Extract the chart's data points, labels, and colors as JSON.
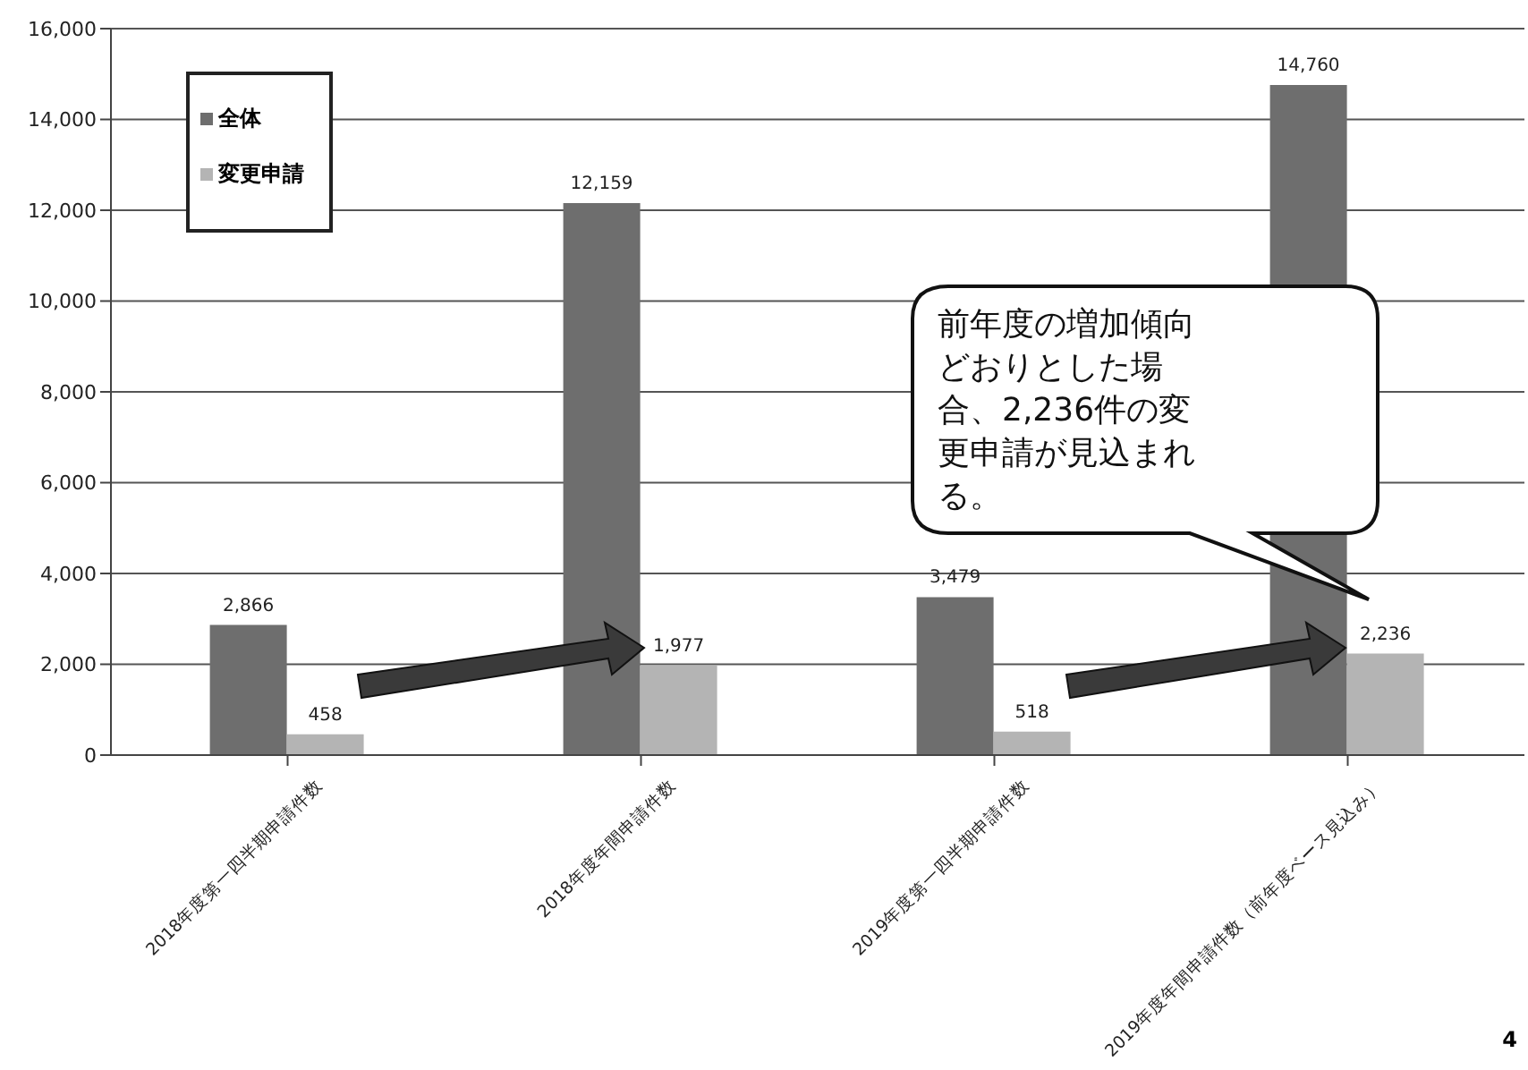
{
  "chart_data": {
    "type": "bar",
    "categories": [
      "2018年度第一四半期申請件数",
      "2018年度年間申請件数",
      "2019年度第一四半期申請件数",
      "2019年度年間申請件数（前年度ベース見込み）"
    ],
    "series": [
      {
        "name": "全体",
        "color": "#6e6e6e",
        "values": [
          2866,
          12159,
          3479,
          14760
        ],
        "value_labels": [
          "2,866",
          "12,159",
          "3,479",
          "14,760"
        ]
      },
      {
        "name": "変更申請",
        "color": "#b4b4b4",
        "values": [
          458,
          1977,
          518,
          2236
        ],
        "value_labels": [
          "458",
          "1,977",
          "518",
          "2,236"
        ]
      }
    ],
    "ylim": [
      0,
      16000
    ],
    "yticks": [
      {
        "value": 0,
        "label": "0"
      },
      {
        "value": 2000,
        "label": "2,000"
      },
      {
        "value": 4000,
        "label": "4,000"
      },
      {
        "value": 6000,
        "label": "6,000"
      },
      {
        "value": 8000,
        "label": "8,000"
      },
      {
        "value": 10000,
        "label": "10,000"
      },
      {
        "value": 12000,
        "label": "12,000"
      },
      {
        "value": 14000,
        "label": "14,000"
      },
      {
        "value": 16000,
        "label": "16,000"
      }
    ],
    "grid": "y",
    "legend": "top left",
    "annotations": [
      "前年度の増加傾向どおりとした場合、2,236件の変更申請が見込まれる。",
      "4"
    ]
  }
}
